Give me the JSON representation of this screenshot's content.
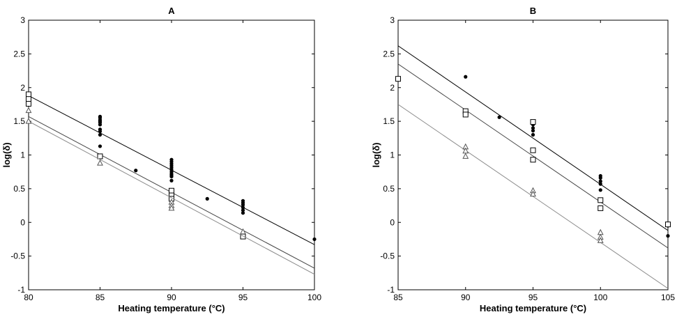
{
  "chart_data": [
    {
      "type": "scatter",
      "title": "A",
      "xlabel": "Heating temperature (°C)",
      "ylabel": "log(δ)",
      "xlim": [
        80,
        100
      ],
      "ylim": [
        -1,
        3
      ],
      "xticks": [
        80,
        85,
        90,
        95,
        100
      ],
      "yticks": [
        -1,
        -0.5,
        0,
        0.5,
        1,
        1.5,
        2,
        2.5,
        3
      ],
      "grid": false,
      "series": [
        {
          "marker": "filled-circle",
          "line_color": "#000000",
          "points": [
            [
              85,
              1.57
            ],
            [
              85,
              1.55
            ],
            [
              85,
              1.52
            ],
            [
              85,
              1.5
            ],
            [
              85,
              1.48
            ],
            [
              85,
              1.45
            ],
            [
              85,
              1.38
            ],
            [
              85,
              1.35
            ],
            [
              85,
              1.3
            ],
            [
              85,
              1.13
            ],
            [
              87.5,
              0.77
            ],
            [
              90,
              0.93
            ],
            [
              90,
              0.9
            ],
            [
              90,
              0.87
            ],
            [
              90,
              0.84
            ],
            [
              90,
              0.81
            ],
            [
              90,
              0.78
            ],
            [
              90,
              0.75
            ],
            [
              90,
              0.72
            ],
            [
              90,
              0.7
            ],
            [
              90,
              0.68
            ],
            [
              90,
              0.62
            ],
            [
              92.5,
              0.35
            ],
            [
              95,
              0.32
            ],
            [
              95,
              0.29
            ],
            [
              95,
              0.26
            ],
            [
              95,
              0.22
            ],
            [
              95,
              0.18
            ],
            [
              95,
              0.14
            ],
            [
              100,
              -0.25
            ]
          ],
          "fit_line": [
            [
              80,
              1.88
            ],
            [
              100,
              -0.33
            ]
          ]
        },
        {
          "marker": "open-square",
          "line_color": "#444444",
          "points": [
            [
              80,
              1.9
            ],
            [
              80,
              1.83
            ],
            [
              80,
              1.76
            ],
            [
              85,
              0.98
            ],
            [
              90,
              0.47
            ],
            [
              90,
              0.4
            ],
            [
              90,
              0.35
            ],
            [
              95,
              -0.21
            ]
          ],
          "fit_line": [
            [
              80,
              1.57
            ],
            [
              100,
              -0.68
            ]
          ]
        },
        {
          "marker": "open-triangle",
          "line_color": "#8c8c8c",
          "points": [
            [
              80,
              1.66
            ],
            [
              80,
              1.5
            ],
            [
              85,
              0.88
            ],
            [
              90,
              0.3
            ],
            [
              90,
              0.25
            ],
            [
              90,
              0.21
            ],
            [
              95,
              -0.14
            ]
          ],
          "fit_line": [
            [
              80,
              1.5
            ],
            [
              100,
              -0.77
            ]
          ]
        }
      ]
    },
    {
      "type": "scatter",
      "title": "B",
      "xlabel": "Heating temperature (°C)",
      "ylabel": "log(δ)",
      "xlim": [
        85,
        105
      ],
      "ylim": [
        -1,
        3
      ],
      "xticks": [
        85,
        90,
        95,
        100,
        105
      ],
      "yticks": [
        -1,
        -0.5,
        0,
        0.5,
        1,
        1.5,
        2,
        2.5,
        3
      ],
      "grid": false,
      "series": [
        {
          "marker": "filled-circle",
          "line_color": "#000000",
          "points": [
            [
              90,
              2.16
            ],
            [
              92.5,
              1.56
            ],
            [
              95,
              1.45
            ],
            [
              95,
              1.4
            ],
            [
              95,
              1.36
            ],
            [
              95,
              1.3
            ],
            [
              100,
              0.69
            ],
            [
              100,
              0.66
            ],
            [
              100,
              0.61
            ],
            [
              100,
              0.57
            ],
            [
              100,
              0.48
            ],
            [
              105,
              -0.05
            ],
            [
              105,
              -0.2
            ]
          ],
          "fit_line": [
            [
              85,
              2.62
            ],
            [
              105,
              -0.12
            ]
          ]
        },
        {
          "marker": "open-square",
          "line_color": "#444444",
          "points": [
            [
              85,
              2.13
            ],
            [
              90,
              1.65
            ],
            [
              90,
              1.6
            ],
            [
              95,
              1.49
            ],
            [
              95,
              1.07
            ],
            [
              95,
              0.93
            ],
            [
              100,
              0.33
            ],
            [
              100,
              0.21
            ],
            [
              105,
              -0.03
            ]
          ],
          "fit_line": [
            [
              85,
              2.35
            ],
            [
              105,
              -0.38
            ]
          ]
        },
        {
          "marker": "open-triangle",
          "line_color": "#8c8c8c",
          "points": [
            [
              90,
              1.12
            ],
            [
              90,
              1.06
            ],
            [
              90,
              0.98
            ],
            [
              95,
              0.47
            ],
            [
              95,
              0.42
            ],
            [
              100,
              -0.15
            ],
            [
              100,
              -0.22
            ],
            [
              100,
              -0.27
            ]
          ],
          "fit_line": [
            [
              85,
              1.75
            ],
            [
              105,
              -0.98
            ]
          ]
        }
      ]
    }
  ]
}
